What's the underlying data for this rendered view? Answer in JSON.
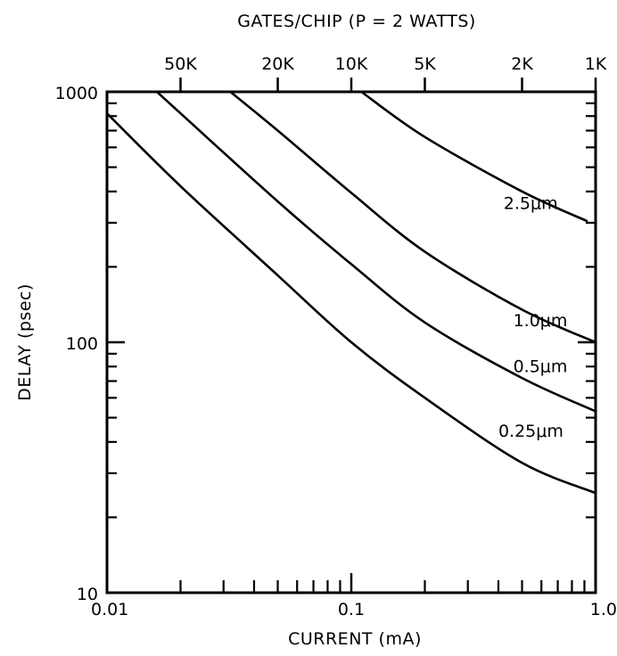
{
  "chart_data": {
    "type": "line",
    "title": "GATES/CHIP (P = 2 WATTS)",
    "xlabel": "CURRENT (mA)",
    "ylabel": "DELAY (psec)",
    "x_scale": "log",
    "y_scale": "log",
    "xlim": [
      0.01,
      1.0
    ],
    "ylim": [
      10,
      1000
    ],
    "x_tick_labels": [
      "0.01",
      "0.1",
      "1.0"
    ],
    "x_ticks": [
      0.01,
      0.1,
      1.0
    ],
    "y_tick_labels": [
      "10",
      "100",
      "1000"
    ],
    "y_ticks": [
      10,
      100,
      1000
    ],
    "top_axis": {
      "label": "GATES/CHIP (P = 2 WATTS)",
      "tick_labels": [
        "50K",
        "20K",
        "10K",
        "5K",
        "2K",
        "1K"
      ],
      "gates": [
        50000,
        20000,
        10000,
        5000,
        2000,
        1000
      ],
      "current_at_ticks": [
        0.02,
        0.05,
        0.1,
        0.2,
        0.5,
        1.0
      ]
    },
    "grid": false,
    "legend": "none",
    "series": [
      {
        "name": "0.25μm",
        "x": [
          0.01,
          0.02,
          0.05,
          0.1,
          0.2,
          0.5,
          1.0
        ],
        "y": [
          820,
          420,
          185,
          100,
          60,
          33,
          25
        ]
      },
      {
        "name": "0.5μm",
        "x": [
          0.016,
          0.02,
          0.05,
          0.1,
          0.2,
          0.5,
          1.0
        ],
        "y": [
          1000,
          820,
          365,
          205,
          120,
          72,
          53
        ]
      },
      {
        "name": "1.0μm",
        "x": [
          0.032,
          0.05,
          0.1,
          0.2,
          0.5,
          1.0
        ],
        "y": [
          1000,
          700,
          395,
          230,
          135,
          100
        ]
      },
      {
        "name": "2.5μm",
        "x": [
          0.11,
          0.2,
          0.5,
          0.92
        ],
        "y": [
          1000,
          660,
          400,
          305
        ]
      }
    ],
    "curve_labels": [
      {
        "text": "2.5μm",
        "x": 0.42,
        "y": 340
      },
      {
        "text": "1.0μm",
        "x": 0.46,
        "y": 116
      },
      {
        "text": "0.5μm",
        "x": 0.46,
        "y": 76
      },
      {
        "text": "0.25μm",
        "x": 0.4,
        "y": 42
      }
    ]
  }
}
